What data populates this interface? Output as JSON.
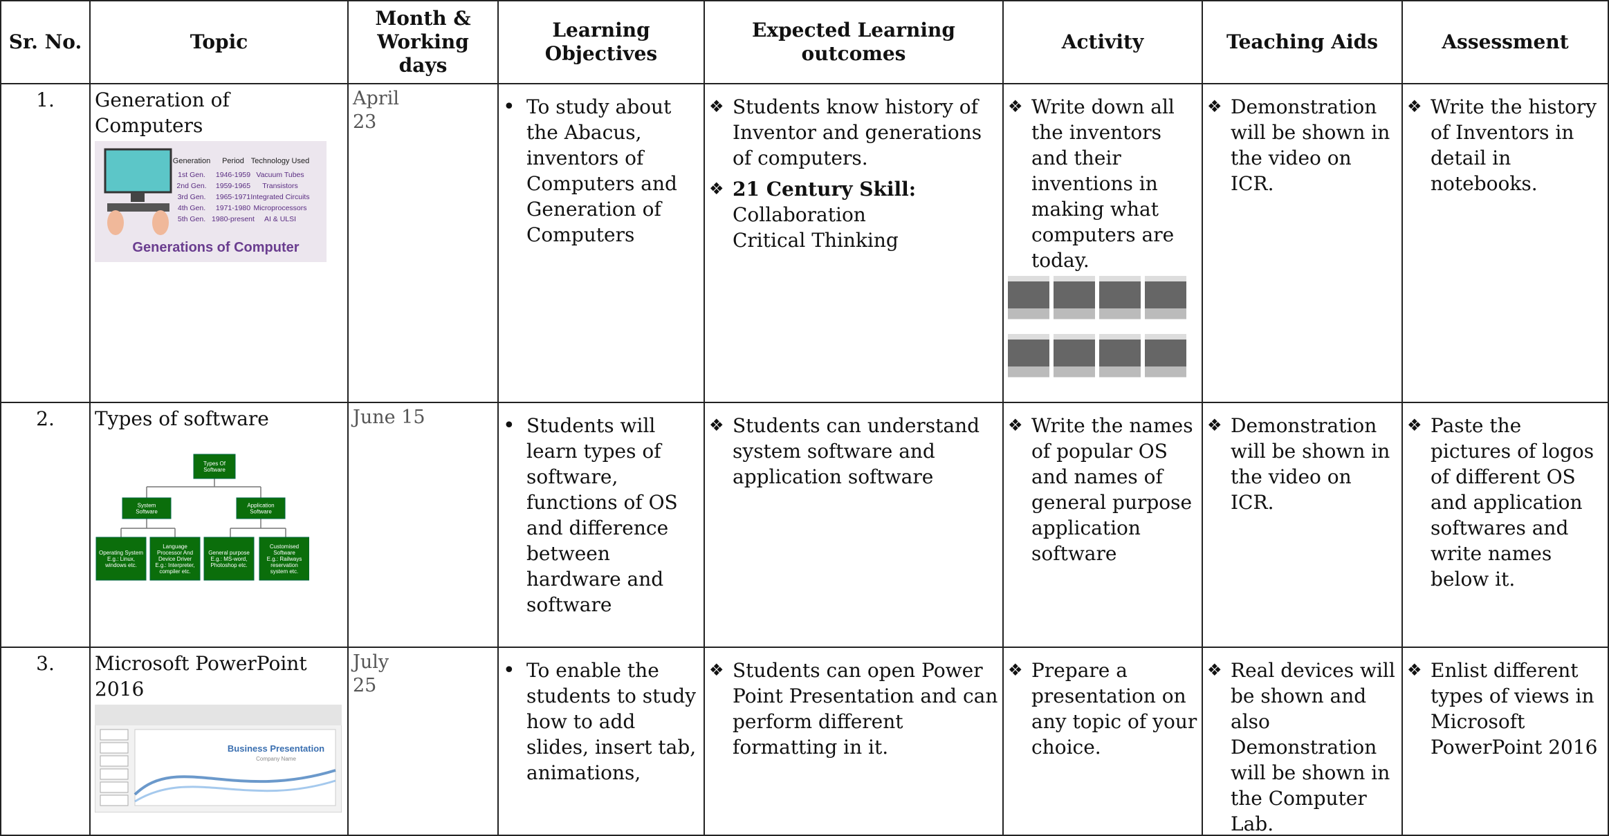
{
  "table": {
    "header": [
      "Sr. No.",
      "Topic",
      "Month & Working days",
      "Learning Objectives",
      "Expected Learning outcomes",
      "Activity",
      "Teaching Aids",
      "Assessment"
    ],
    "rows": [
      {
        "sr": "1.",
        "topic": "Generation of Computers",
        "month": [
          "April",
          "23"
        ],
        "objectives": "To study about the Abacus, inventors of Computers and Generation of Computers",
        "outcomes": [
          "Students know history of Inventor and generations of computers.",
          {
            "label": "21 Century Skill:",
            "lines": [
              "Collaboration",
              "Critical Thinking"
            ]
          }
        ],
        "activity": "Write down all the inventors and their inventions in making what computers are today.",
        "aids": "Demonstration will be shown in the video on ICR.",
        "assessment": "Write the history of Inventors in detail in notebooks.",
        "image": {
          "title": "Generations of Computer",
          "columns": [
            "Generation",
            "Period",
            "Technology Used"
          ],
          "rows": [
            [
              "1st Gen.",
              "1946-1959",
              "Vacuum Tubes"
            ],
            [
              "2nd Gen.",
              "1959-1965",
              "Transistors"
            ],
            [
              "3rd Gen.",
              "1965-1971",
              "Integrated Circuits"
            ],
            [
              "4th Gen.",
              "1971-1980",
              "Microprocessors"
            ],
            [
              "5th Gen.",
              "1980-present",
              "AI & ULSI"
            ]
          ]
        }
      },
      {
        "sr": "2.",
        "topic": "Types of software",
        "month": [
          "June 15"
        ],
        "objectives": "Students will learn types of software, functions of OS and difference between hardware and software",
        "outcomes": [
          "Students can understand system software and application software"
        ],
        "activity": "Write the names of popular OS and names of general purpose application software",
        "aids": "Demonstration will be shown in the video on ICR.",
        "assessment": "Paste the pictures of logos of different OS and application softwares and write names below it.",
        "image": {
          "root": [
            "Types Of",
            "Software"
          ],
          "branches": [
            [
              "System",
              "Software"
            ],
            [
              "Application",
              "Software"
            ]
          ],
          "leaves": [
            [
              "Operating System",
              "E.g.: Linux,",
              "windows etc."
            ],
            [
              "Language",
              "Processor And",
              "Device Driver",
              "E.g.: Interpreter,",
              "compiler etc."
            ],
            [
              "General purpose",
              "E.g.: MS-word,",
              "Photoshop etc."
            ],
            [
              "Customised",
              "Software",
              "E.g.: Railways",
              "reservation",
              "system etc."
            ]
          ]
        }
      },
      {
        "sr": "3.",
        "topic": "Microsoft PowerPoint 2016",
        "month": [
          "July",
          "25"
        ],
        "objectives": "To enable the students to study how to add slides, insert tab, animations,",
        "outcomes": [
          "Students can open Power Point Presentation and can perform different formatting in it."
        ],
        "activity": "Prepare a presentation on any topic of your choice.",
        "aids": "Real devices will be shown and also Demonstration will be shown in the Computer Lab.",
        "assessment": "Enlist different types of views in Microsoft PowerPoint 2016",
        "image": {
          "title": "Business Presentation",
          "subtitle": "Company Name"
        }
      }
    ]
  }
}
